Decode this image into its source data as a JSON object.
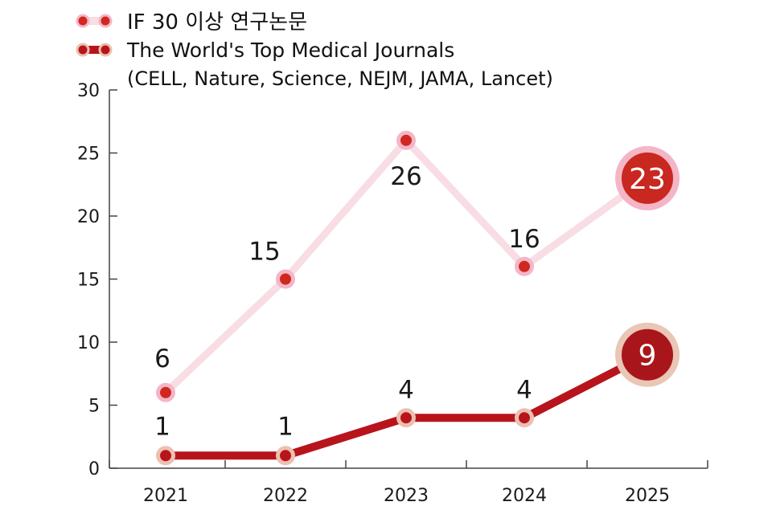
{
  "chart_data": {
    "type": "line",
    "categories": [
      "2021",
      "2022",
      "2023",
      "2024",
      "2025"
    ],
    "series": [
      {
        "name": "IF 30 이상 연구논문",
        "values": [
          6,
          15,
          26,
          16,
          23
        ],
        "line_color": "#f8dde4",
        "marker_color": "#d0271f",
        "marker_ring": "#f4b6c6",
        "highlight_fill": "#c8281f",
        "highlight_ring": "#f4b6c6"
      },
      {
        "name": "The World's Top Medical Journals",
        "subtitle": "(CELL, Nature, Science, NEJM, JAMA, Lancet)",
        "values": [
          1,
          1,
          4,
          4,
          9
        ],
        "line_color": "#b8141c",
        "marker_color": "#b8141c",
        "marker_ring": "#ecc0b0",
        "highlight_fill": "#a8161b",
        "highlight_ring": "#e9c6b6"
      }
    ],
    "ylim": [
      0,
      30
    ],
    "yticks": [
      0,
      5,
      10,
      15,
      20,
      25,
      30
    ],
    "xlabel": "",
    "ylabel": "",
    "grid": false,
    "legend_position": "top-left"
  }
}
